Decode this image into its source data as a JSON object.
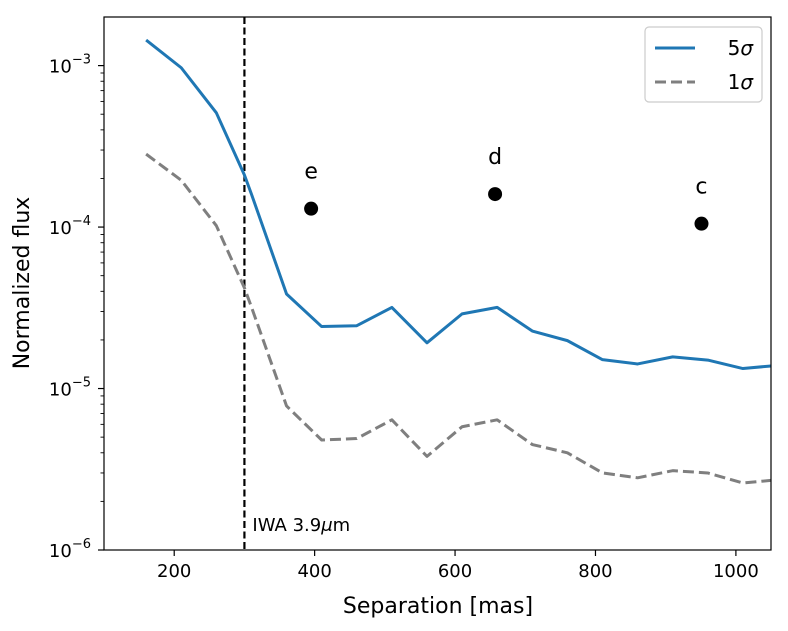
{
  "chart_data": {
    "type": "line",
    "title": "",
    "xlabel": "Separation [mas]",
    "ylabel": "Normalized flux",
    "xlim": [
      100,
      1050
    ],
    "ylim": [
      1e-06,
      0.002
    ],
    "yscale": "log",
    "grid": false,
    "legend_position": "top-right",
    "x_ticks": [
      200,
      400,
      600,
      800,
      1000
    ],
    "x_tick_labels": [
      "200",
      "400",
      "600",
      "800",
      "1000"
    ],
    "y_ticks": [
      {
        "value": 0.001,
        "base": "10",
        "exp": "−3"
      },
      {
        "value": 0.0001,
        "base": "10",
        "exp": "−4"
      },
      {
        "value": 1e-05,
        "base": "10",
        "exp": "−5"
      },
      {
        "value": 1e-06,
        "base": "10",
        "exp": "−6"
      }
    ],
    "series": [
      {
        "name": "5σ",
        "legend_main": "5",
        "legend_sigma": "σ",
        "color": "#1f77b4",
        "style": "solid",
        "x": [
          160,
          210,
          260,
          300,
          310,
          360,
          410,
          460,
          510,
          560,
          610,
          660,
          710,
          760,
          810,
          860,
          910,
          960,
          1010,
          1050
        ],
        "y": [
          0.00144,
          0.00097,
          0.00051,
          0.00021,
          0.00016,
          3.85e-05,
          2.42e-05,
          2.45e-05,
          3.18e-05,
          1.92e-05,
          2.9e-05,
          3.18e-05,
          2.27e-05,
          1.98e-05,
          1.51e-05,
          1.42e-05,
          1.57e-05,
          1.5e-05,
          1.33e-05,
          1.38e-05
        ]
      },
      {
        "name": "1σ",
        "legend_main": "1",
        "legend_sigma": "σ",
        "color": "#7f7f7f",
        "style": "dashed",
        "x": [
          160,
          210,
          260,
          300,
          310,
          360,
          410,
          460,
          510,
          560,
          610,
          660,
          710,
          760,
          810,
          860,
          910,
          960,
          1010,
          1050
        ],
        "y": [
          0.000283,
          0.000195,
          0.000102,
          4.2e-05,
          3.2e-05,
          7.8e-06,
          4.8e-06,
          4.9e-06,
          6.4e-06,
          3.8e-06,
          5.8e-06,
          6.4e-06,
          4.5e-06,
          4e-06,
          3e-06,
          2.8e-06,
          3.1e-06,
          3e-06,
          2.6e-06,
          2.7e-06
        ]
      }
    ],
    "points": [
      {
        "label": "e",
        "x": 395,
        "y": 0.00013
      },
      {
        "label": "d",
        "x": 657,
        "y": 0.00016
      },
      {
        "label": "c",
        "x": 951,
        "y": 0.000105
      }
    ],
    "annotations": [
      {
        "type": "vline",
        "x": 300,
        "style": "dashed",
        "color": "#000000",
        "text_main": "IWA 3.9",
        "text_mu": "μ",
        "text_unit": "m"
      }
    ]
  }
}
